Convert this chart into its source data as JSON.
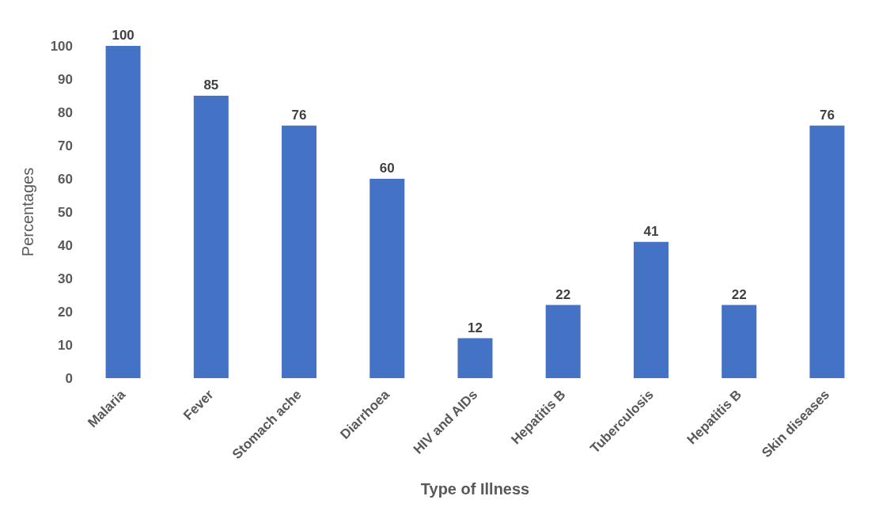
{
  "chart_data": {
    "type": "bar",
    "xlabel": "Type of Illness",
    "ylabel": "Percentages",
    "categories": [
      "Malaria",
      "Fever",
      "Stomach ache",
      "Diarrhoea",
      "HIV and AIDs",
      "Hepatitis B",
      "Tuberculosis",
      "Hepatitis B",
      "Skin diseases"
    ],
    "values": [
      100,
      85,
      76,
      60,
      12,
      22,
      41,
      22,
      76
    ],
    "color": "#4472c4",
    "ylim": [
      0,
      100
    ],
    "yticks": [
      0,
      10,
      20,
      30,
      40,
      50,
      60,
      70,
      80,
      90,
      100
    ],
    "data_labels": true
  }
}
